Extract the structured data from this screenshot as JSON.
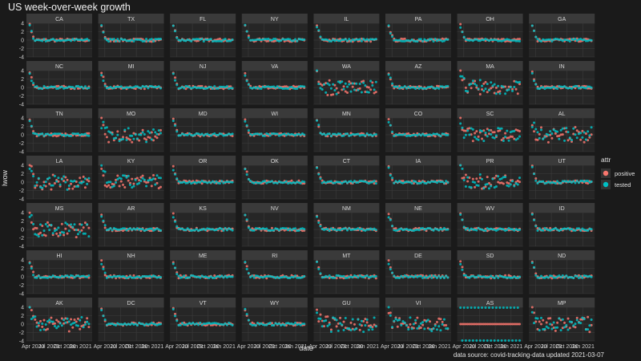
{
  "chart_data": {
    "type": "scatter",
    "title": "US week-over-week growth",
    "xlabel": "date",
    "ylabel": "lwow",
    "x_tick_labels": [
      "Apr 2020",
      "Jul 2020",
      "Oct 2020",
      "Jan 2021"
    ],
    "y_tick_labels": [
      "4",
      "2",
      "0",
      "-2",
      "-4"
    ],
    "ylim": [
      -4,
      4
    ],
    "xlim": [
      "2020-03-01",
      "2021-03-07"
    ],
    "grid": true,
    "facet_layout": {
      "rows": 7,
      "cols": 8
    },
    "panels": [
      "CA",
      "TX",
      "FL",
      "NY",
      "IL",
      "PA",
      "OH",
      "GA",
      "NC",
      "MI",
      "NJ",
      "VA",
      "WA",
      "AZ",
      "MA",
      "IN",
      "TN",
      "MO",
      "MD",
      "WI",
      "MN",
      "CO",
      "SC",
      "AL",
      "LA",
      "KY",
      "OR",
      "OK",
      "CT",
      "IA",
      "PR",
      "UT",
      "MS",
      "AR",
      "KS",
      "NV",
      "NM",
      "NE",
      "WV",
      "ID",
      "HI",
      "NH",
      "ME",
      "RI",
      "MT",
      "DE",
      "SD",
      "ND",
      "AK",
      "DC",
      "VT",
      "WY",
      "GU",
      "VI",
      "AS",
      "MP"
    ],
    "legend": {
      "title": "attr",
      "position": "right",
      "entries": [
        {
          "name": "positive",
          "color": "#f8766d"
        },
        {
          "name": "tested",
          "color": "#00bfc4"
        }
      ]
    },
    "series": [
      {
        "name": "positive",
        "color": "#f8766d",
        "description_values": {
          "early_peak": 3.5,
          "steady": 0.0,
          "noise": 0.35
        }
      },
      {
        "name": "tested",
        "color": "#00bfc4",
        "description_values": {
          "early_peak": 3.2,
          "steady": 0.0,
          "noise": 0.3
        }
      }
    ]
  },
  "caption": "data source: covid-tracking-data updated  2021-03-07"
}
